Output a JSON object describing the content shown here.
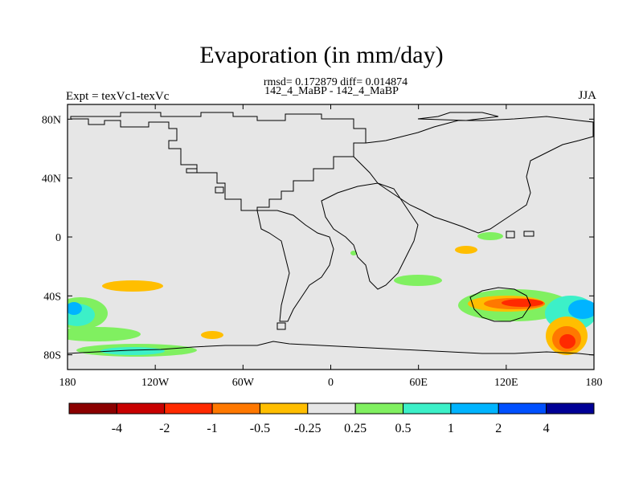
{
  "title": "Evaporation (in mm/day)",
  "stats": "rmsd= 0.172879 diff= 0.014874",
  "subtitle": "142_4_MaBP - 142_4_MaBP",
  "left_label": "Expt = texVc1-texVc",
  "right_label": "JJA",
  "map": {
    "lon_range": [
      -180,
      180
    ],
    "lat_range": [
      -90,
      90
    ],
    "background_color": "#e6e6e6",
    "x_ticks": [
      {
        "value": -180,
        "label": "180"
      },
      {
        "value": -120,
        "label": "120W"
      },
      {
        "value": -60,
        "label": "60W"
      },
      {
        "value": 0,
        "label": "0"
      },
      {
        "value": 60,
        "label": "60E"
      },
      {
        "value": 120,
        "label": "120E"
      },
      {
        "value": 180,
        "label": "180"
      }
    ],
    "y_ticks": [
      {
        "value": 80,
        "label": "80N"
      },
      {
        "value": 40,
        "label": "40N"
      },
      {
        "value": 0,
        "label": "0"
      },
      {
        "value": -40,
        "label": "40S"
      },
      {
        "value": -80,
        "label": "80S"
      }
    ]
  },
  "colorbar": {
    "colors": [
      "#8b0000",
      "#c80000",
      "#ff2a00",
      "#ff7800",
      "#ffbe00",
      "#e6e6e6",
      "#80f060",
      "#3cf0c8",
      "#00b4ff",
      "#0050ff",
      "#000096"
    ],
    "labels": [
      "-4",
      "-2",
      "-1",
      "-0.5",
      "-0.25",
      "0.25",
      "0.5",
      "1",
      "2",
      "4"
    ]
  }
}
